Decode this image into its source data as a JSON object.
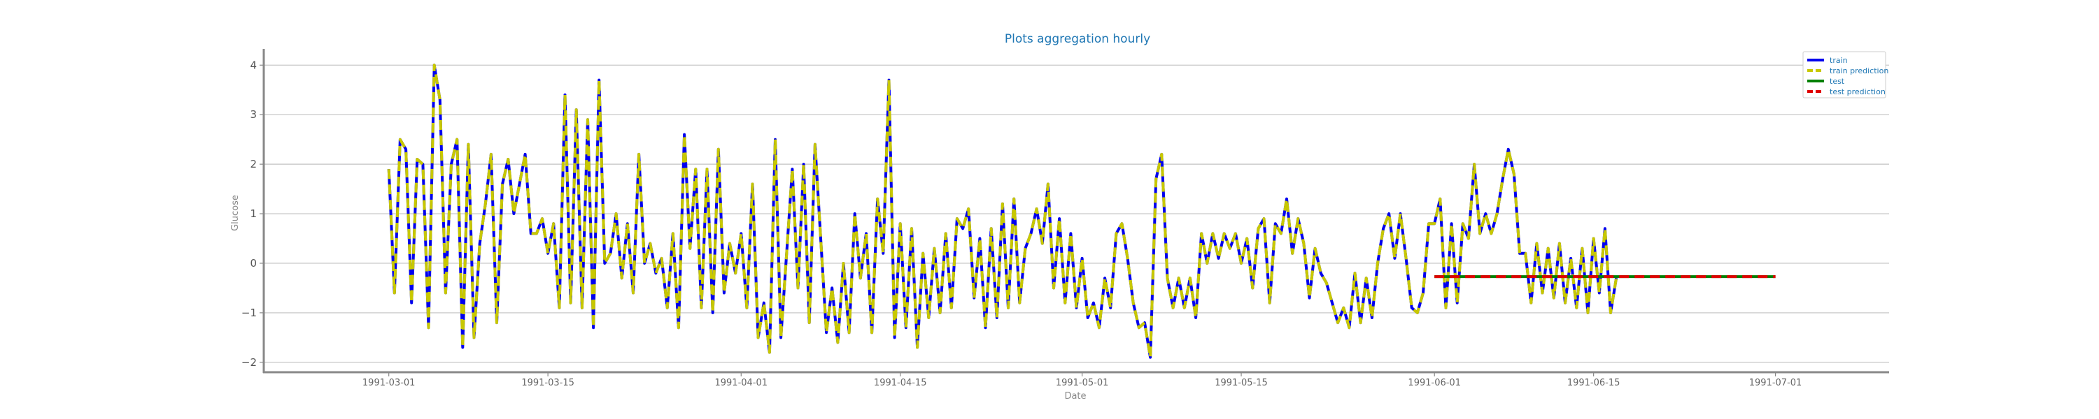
{
  "chart_data": {
    "type": "line",
    "title": "Plots aggregation hourly",
    "xlabel": "Date",
    "ylabel": "Glucose",
    "x_axis": "date",
    "xlim": [
      "1991-02-18",
      "1991-07-11"
    ],
    "ylim": [
      -2.2,
      4.3
    ],
    "x_ticks": [
      "1991-03-01",
      "1991-03-15",
      "1991-04-01",
      "1991-04-15",
      "1991-05-01",
      "1991-05-15",
      "1991-06-01",
      "1991-06-15",
      "1991-07-01"
    ],
    "y_ticks": [
      -2,
      -1,
      0,
      1,
      2,
      3,
      4
    ],
    "grid": "horizontal",
    "legend_position": "top-right",
    "colors": {
      "title": "#1f77b4",
      "train": "#0000ee",
      "train_prediction": "#c8c800",
      "test": "#008000",
      "test_prediction": "#e00000",
      "legend_text": "#1f77b4",
      "grid": "#cccccc",
      "axis": "#888888"
    },
    "series": [
      {
        "name": "train",
        "style": "solid",
        "points": [
          [
            "1991-03-01",
            1.9
          ],
          [
            "1991-03-01 12:00",
            -0.6
          ],
          [
            "1991-03-02",
            2.5
          ],
          [
            "1991-03-02 12:00",
            2.3
          ],
          [
            "1991-03-03",
            -0.8
          ],
          [
            "1991-03-03 12:00",
            2.1
          ],
          [
            "1991-03-04",
            2.0
          ],
          [
            "1991-03-04 12:00",
            -1.3
          ],
          [
            "1991-03-05",
            4.0
          ],
          [
            "1991-03-05 12:00",
            3.3
          ],
          [
            "1991-03-06",
            -0.6
          ],
          [
            "1991-03-06 12:00",
            2.0
          ],
          [
            "1991-03-07",
            2.5
          ],
          [
            "1991-03-07 12:00",
            -1.7
          ],
          [
            "1991-03-08",
            2.4
          ],
          [
            "1991-03-08 12:00",
            -1.5
          ],
          [
            "1991-03-09",
            0.4
          ],
          [
            "1991-03-09 12:00",
            1.2
          ],
          [
            "1991-03-10",
            2.2
          ],
          [
            "1991-03-10 12:00",
            -1.2
          ],
          [
            "1991-03-11",
            1.6
          ],
          [
            "1991-03-11 12:00",
            2.1
          ],
          [
            "1991-03-12",
            1.0
          ],
          [
            "1991-03-12 12:00",
            1.6
          ],
          [
            "1991-03-13",
            2.2
          ],
          [
            "1991-03-13 12:00",
            0.6
          ],
          [
            "1991-03-14",
            0.6
          ],
          [
            "1991-03-14 12:00",
            0.9
          ],
          [
            "1991-03-15",
            0.2
          ],
          [
            "1991-03-15 12:00",
            0.8
          ],
          [
            "1991-03-16",
            -0.9
          ],
          [
            "1991-03-16 12:00",
            3.4
          ],
          [
            "1991-03-17",
            -0.8
          ],
          [
            "1991-03-17 12:00",
            3.1
          ],
          [
            "1991-03-18",
            -0.9
          ],
          [
            "1991-03-18 12:00",
            2.9
          ],
          [
            "1991-03-19",
            -1.3
          ],
          [
            "1991-03-19 12:00",
            3.7
          ],
          [
            "1991-03-20",
            0.0
          ],
          [
            "1991-03-20 12:00",
            0.2
          ],
          [
            "1991-03-21",
            1.0
          ],
          [
            "1991-03-21 12:00",
            -0.3
          ],
          [
            "1991-03-22",
            0.8
          ],
          [
            "1991-03-22 12:00",
            -0.6
          ],
          [
            "1991-03-23",
            2.2
          ],
          [
            "1991-03-23 12:00",
            0.0
          ],
          [
            "1991-03-24",
            0.4
          ],
          [
            "1991-03-24 12:00",
            -0.2
          ],
          [
            "1991-03-25",
            0.1
          ],
          [
            "1991-03-25 12:00",
            -0.9
          ],
          [
            "1991-03-26",
            0.6
          ],
          [
            "1991-03-26 12:00",
            -1.3
          ],
          [
            "1991-03-27",
            2.6
          ],
          [
            "1991-03-27 12:00",
            0.3
          ],
          [
            "1991-03-28",
            1.9
          ],
          [
            "1991-03-28 12:00",
            -0.9
          ],
          [
            "1991-03-29",
            1.9
          ],
          [
            "1991-03-29 12:00",
            -1.0
          ],
          [
            "1991-03-30",
            2.3
          ],
          [
            "1991-03-30 12:00",
            -0.6
          ],
          [
            "1991-03-31",
            0.4
          ],
          [
            "1991-03-31 12:00",
            -0.2
          ],
          [
            "1991-04-01",
            0.6
          ],
          [
            "1991-04-01 12:00",
            -0.9
          ],
          [
            "1991-04-02",
            1.6
          ],
          [
            "1991-04-02 12:00",
            -1.5
          ],
          [
            "1991-04-03",
            -0.8
          ],
          [
            "1991-04-03 12:00",
            -1.8
          ],
          [
            "1991-04-04",
            2.5
          ],
          [
            "1991-04-04 12:00",
            -1.5
          ],
          [
            "1991-04-05",
            0.2
          ],
          [
            "1991-04-05 12:00",
            1.9
          ],
          [
            "1991-04-06",
            -0.5
          ],
          [
            "1991-04-06 12:00",
            2.0
          ],
          [
            "1991-04-07",
            -1.2
          ],
          [
            "1991-04-07 12:00",
            2.4
          ],
          [
            "1991-04-08",
            0.5
          ],
          [
            "1991-04-08 12:00",
            -1.4
          ],
          [
            "1991-04-09",
            -0.5
          ],
          [
            "1991-04-09 12:00",
            -1.6
          ],
          [
            "1991-04-10",
            0.0
          ],
          [
            "1991-04-10 12:00",
            -1.4
          ],
          [
            "1991-04-11",
            1.0
          ],
          [
            "1991-04-11 12:00",
            -0.3
          ],
          [
            "1991-04-12",
            0.6
          ],
          [
            "1991-04-12 12:00",
            -1.4
          ],
          [
            "1991-04-13",
            1.3
          ],
          [
            "1991-04-13 12:00",
            0.2
          ],
          [
            "1991-04-14",
            3.7
          ],
          [
            "1991-04-14 12:00",
            -1.5
          ],
          [
            "1991-04-15",
            0.8
          ],
          [
            "1991-04-15 12:00",
            -1.3
          ],
          [
            "1991-04-16",
            0.7
          ],
          [
            "1991-04-16 12:00",
            -1.7
          ],
          [
            "1991-04-17",
            0.2
          ],
          [
            "1991-04-17 12:00",
            -1.1
          ],
          [
            "1991-04-18",
            0.3
          ],
          [
            "1991-04-18 12:00",
            -1.0
          ],
          [
            "1991-04-19",
            0.6
          ],
          [
            "1991-04-19 12:00",
            -0.9
          ],
          [
            "1991-04-20",
            0.9
          ],
          [
            "1991-04-20 12:00",
            0.7
          ],
          [
            "1991-04-21",
            1.1
          ],
          [
            "1991-04-21 12:00",
            -0.7
          ],
          [
            "1991-04-22",
            0.5
          ],
          [
            "1991-04-22 12:00",
            -1.3
          ],
          [
            "1991-04-23",
            0.7
          ],
          [
            "1991-04-23 12:00",
            -1.1
          ],
          [
            "1991-04-24",
            1.2
          ],
          [
            "1991-04-24 12:00",
            -0.9
          ],
          [
            "1991-04-25",
            1.3
          ],
          [
            "1991-04-25 12:00",
            -0.8
          ],
          [
            "1991-04-26",
            0.3
          ],
          [
            "1991-04-26 12:00",
            0.6
          ],
          [
            "1991-04-27",
            1.1
          ],
          [
            "1991-04-27 12:00",
            0.4
          ],
          [
            "1991-04-28",
            1.6
          ],
          [
            "1991-04-28 12:00",
            -0.5
          ],
          [
            "1991-04-29",
            0.9
          ],
          [
            "1991-04-29 12:00",
            -0.8
          ],
          [
            "1991-04-30",
            0.6
          ],
          [
            "1991-04-30 12:00",
            -0.9
          ],
          [
            "1991-05-01",
            0.1
          ],
          [
            "1991-05-01 12:00",
            -1.1
          ],
          [
            "1991-05-02",
            -0.8
          ],
          [
            "1991-05-02 12:00",
            -1.3
          ],
          [
            "1991-05-03",
            -0.3
          ],
          [
            "1991-05-03 12:00",
            -0.9
          ],
          [
            "1991-05-04",
            0.6
          ],
          [
            "1991-05-04 12:00",
            0.8
          ],
          [
            "1991-05-05",
            0.1
          ],
          [
            "1991-05-05 12:00",
            -0.8
          ],
          [
            "1991-05-06",
            -1.3
          ],
          [
            "1991-05-06 12:00",
            -1.2
          ],
          [
            "1991-05-07",
            -1.9
          ],
          [
            "1991-05-07 12:00",
            1.7
          ],
          [
            "1991-05-08",
            2.2
          ],
          [
            "1991-05-08 12:00",
            -0.3
          ],
          [
            "1991-05-09",
            -0.9
          ],
          [
            "1991-05-09 12:00",
            -0.3
          ],
          [
            "1991-05-10",
            -0.9
          ],
          [
            "1991-05-10 12:00",
            -0.3
          ],
          [
            "1991-05-11",
            -1.1
          ],
          [
            "1991-05-11 12:00",
            0.6
          ],
          [
            "1991-05-12",
            0.0
          ],
          [
            "1991-05-12 12:00",
            0.6
          ],
          [
            "1991-05-13",
            0.1
          ],
          [
            "1991-05-13 12:00",
            0.6
          ],
          [
            "1991-05-14",
            0.3
          ],
          [
            "1991-05-14 12:00",
            0.6
          ],
          [
            "1991-05-15",
            0.0
          ],
          [
            "1991-05-15 12:00",
            0.5
          ],
          [
            "1991-05-16",
            -0.5
          ],
          [
            "1991-05-16 12:00",
            0.7
          ],
          [
            "1991-05-17",
            0.9
          ],
          [
            "1991-05-17 12:00",
            -0.8
          ],
          [
            "1991-05-18",
            0.8
          ],
          [
            "1991-05-18 12:00",
            0.6
          ],
          [
            "1991-05-19",
            1.3
          ],
          [
            "1991-05-19 12:00",
            0.2
          ],
          [
            "1991-05-20",
            0.9
          ],
          [
            "1991-05-20 12:00",
            0.4
          ],
          [
            "1991-05-21",
            -0.7
          ],
          [
            "1991-05-21 12:00",
            0.3
          ],
          [
            "1991-05-22",
            -0.2
          ],
          [
            "1991-05-22 12:00",
            -0.4
          ],
          [
            "1991-05-23",
            -0.8
          ],
          [
            "1991-05-23 12:00",
            -1.2
          ],
          [
            "1991-05-24",
            -0.9
          ],
          [
            "1991-05-24 12:00",
            -1.3
          ],
          [
            "1991-05-25",
            -0.2
          ],
          [
            "1991-05-25 12:00",
            -1.2
          ],
          [
            "1991-05-26",
            -0.3
          ],
          [
            "1991-05-26 12:00",
            -1.1
          ],
          [
            "1991-05-27",
            0.0
          ],
          [
            "1991-05-27 12:00",
            0.7
          ],
          [
            "1991-05-28",
            1.0
          ],
          [
            "1991-05-28 12:00",
            0.1
          ],
          [
            "1991-05-29",
            1.0
          ],
          [
            "1991-05-29 12:00",
            0.1
          ],
          [
            "1991-05-30",
            -0.9
          ],
          [
            "1991-05-30 12:00",
            -1.0
          ],
          [
            "1991-05-31",
            -0.6
          ],
          [
            "1991-05-31 12:00",
            0.8
          ],
          [
            "1991-06-01",
            0.8
          ],
          [
            "1991-06-01 12:00",
            1.3
          ],
          [
            "1991-06-02",
            -0.9
          ],
          [
            "1991-06-02 12:00",
            0.8
          ],
          [
            "1991-06-03",
            -0.8
          ],
          [
            "1991-06-03 12:00",
            0.8
          ],
          [
            "1991-06-04",
            0.5
          ],
          [
            "1991-06-04 12:00",
            2.0
          ],
          [
            "1991-06-05",
            0.6
          ],
          [
            "1991-06-05 12:00",
            1.0
          ],
          [
            "1991-06-06",
            0.6
          ],
          [
            "1991-06-06 12:00",
            1.0
          ],
          [
            "1991-06-07",
            1.7
          ],
          [
            "1991-06-07 12:00",
            2.3
          ],
          [
            "1991-06-08",
            1.8
          ],
          [
            "1991-06-08 12:00",
            0.2
          ],
          [
            "1991-06-09",
            0.2
          ],
          [
            "1991-06-09 12:00",
            -0.8
          ],
          [
            "1991-06-10",
            0.4
          ],
          [
            "1991-06-10 12:00",
            -0.6
          ],
          [
            "1991-06-11",
            0.3
          ],
          [
            "1991-06-11 12:00",
            -0.7
          ],
          [
            "1991-06-12",
            0.4
          ],
          [
            "1991-06-12 12:00",
            -0.8
          ],
          [
            "1991-06-13",
            0.1
          ],
          [
            "1991-06-13 12:00",
            -0.9
          ],
          [
            "1991-06-14",
            0.3
          ],
          [
            "1991-06-14 12:00",
            -1.0
          ],
          [
            "1991-06-15",
            0.5
          ],
          [
            "1991-06-15 12:00",
            -0.6
          ],
          [
            "1991-06-16",
            0.7
          ],
          [
            "1991-06-16 12:00",
            -1.0
          ],
          [
            "1991-06-17",
            -0.3
          ]
        ]
      },
      {
        "name": "train prediction",
        "style": "dashed",
        "lag_days": 0.6,
        "note_same_shape_as_train": true
      },
      {
        "name": "test",
        "style": "solid",
        "points": [
          [
            "1991-06-01",
            -0.27
          ],
          [
            "1991-07-01",
            -0.27
          ]
        ]
      },
      {
        "name": "test prediction",
        "style": "dashed",
        "points": [
          [
            "1991-06-01",
            -0.27
          ],
          [
            "1991-07-01",
            -0.27
          ]
        ]
      }
    ]
  }
}
